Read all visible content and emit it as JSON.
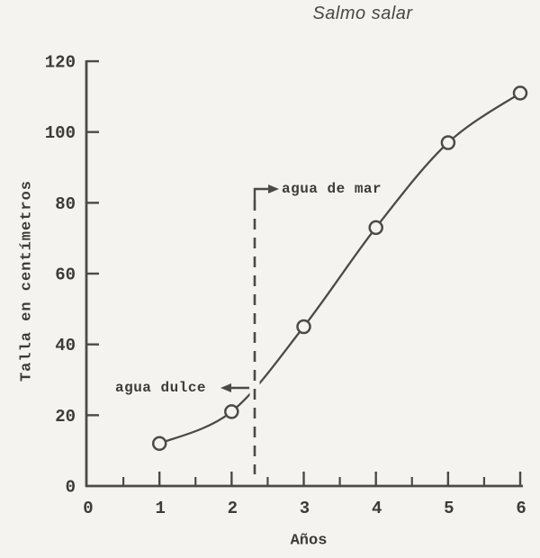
{
  "chart_data": {
    "type": "line",
    "title": "Salmo salar",
    "xlabel": "Años",
    "ylabel": "Talla en centímetros",
    "x": [
      1,
      2,
      3,
      4,
      5,
      6
    ],
    "values": [
      12,
      21,
      45,
      73,
      97,
      111
    ],
    "xlim": [
      0,
      6
    ],
    "ylim": [
      0,
      120
    ],
    "xticks": [
      0,
      1,
      2,
      3,
      4,
      5,
      6
    ],
    "x_minor_step": 0.5,
    "yticks": [
      0,
      20,
      40,
      60,
      80,
      100,
      120
    ],
    "grid": false,
    "legend": false,
    "marker": "open-circle",
    "divider": {
      "x": 2.32,
      "style": "dashed-vertical",
      "label_left": "agua dulce",
      "label_right": "agua de mar"
    },
    "colors": {
      "ink": "#4c4a45",
      "paper": "#f4f3ef"
    }
  }
}
